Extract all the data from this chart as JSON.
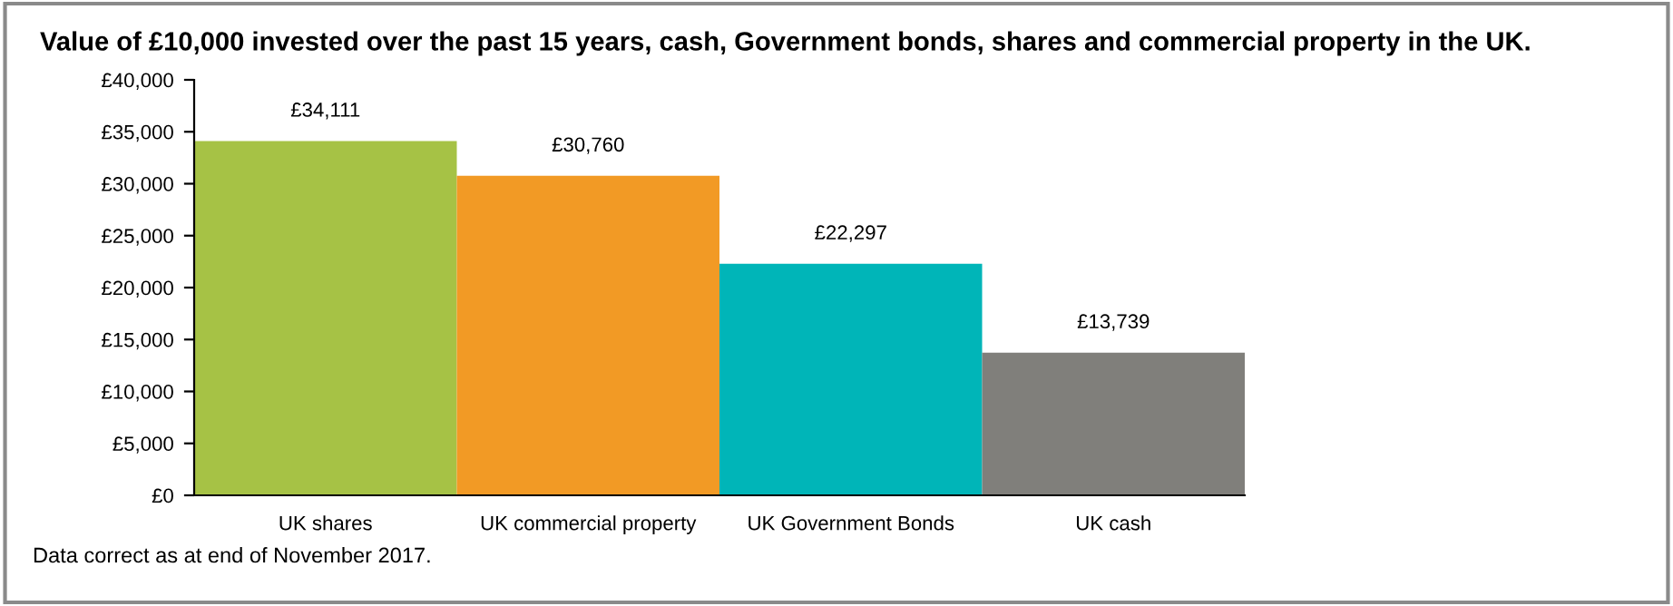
{
  "chart_data": {
    "type": "bar",
    "title": "Value of £10,000 invested over the past 15 years, cash, Government bonds, shares and commercial property in the UK.",
    "categories": [
      "UK shares",
      "UK commercial property",
      "UK Government Bonds",
      "UK cash"
    ],
    "values": [
      34111,
      30760,
      22297,
      13739
    ],
    "colors": [
      "#a6c245",
      "#f29a25",
      "#00b5b8",
      "#807f7b"
    ],
    "value_labels": [
      "£34,111",
      "£30,760",
      "£22,297",
      "£13,739"
    ],
    "ylim": [
      0,
      40000
    ],
    "yticks": [
      {
        "value": 0,
        "label": "£0"
      },
      {
        "value": 5000,
        "label": "£5,000"
      },
      {
        "value": 10000,
        "label": "£10,000"
      },
      {
        "value": 15000,
        "label": "£15,000"
      },
      {
        "value": 20000,
        "label": "£20,000"
      },
      {
        "value": 25000,
        "label": "£25,000"
      },
      {
        "value": 30000,
        "label": "£30,000"
      },
      {
        "value": 35000,
        "label": "£35,000"
      },
      {
        "value": 40000,
        "label": "£40,000"
      }
    ],
    "annotations": [
      "Data correct as at end of November 2017."
    ]
  }
}
